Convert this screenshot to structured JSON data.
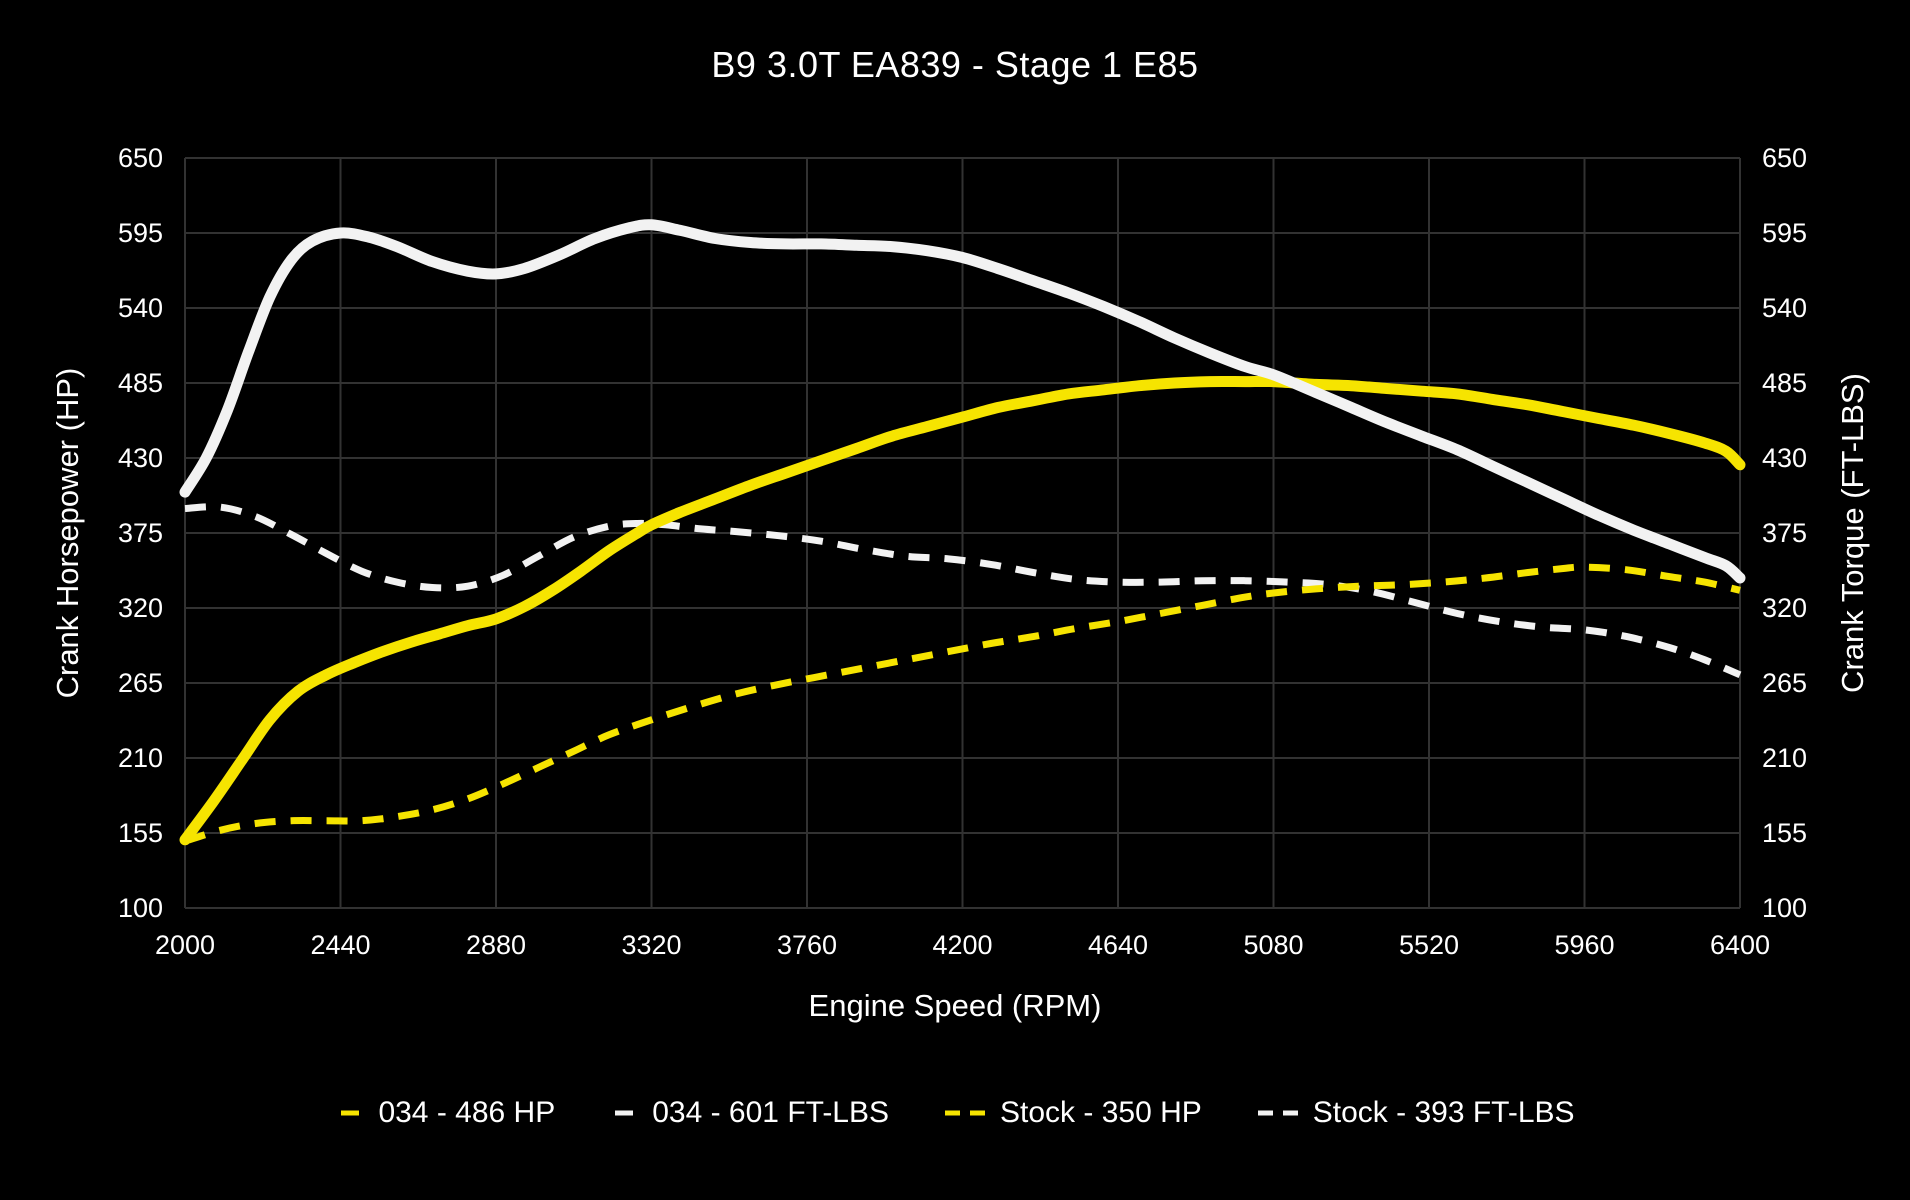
{
  "title": "B9 3.0T EA839 - Stage 1 E85",
  "colors": {
    "background": "#000000",
    "text": "#ffffff",
    "grid": "#323232",
    "yellow": "#f6e400",
    "white": "#f2f2f2"
  },
  "chart_data": {
    "type": "line",
    "title": "B9 3.0T EA839 - Stage 1 E85",
    "xlabel": "Engine Speed (RPM)",
    "ylabel_left": "Crank Horsepower (HP)",
    "ylabel_right": "Crank Torque (FT-LBS)",
    "xlim": [
      2000,
      6400
    ],
    "ylim": [
      100,
      650
    ],
    "x_ticks": [
      2000,
      2440,
      2880,
      3320,
      3760,
      4200,
      4640,
      5080,
      5520,
      5960,
      6400
    ],
    "y_ticks": [
      100,
      155,
      210,
      265,
      320,
      375,
      430,
      485,
      540,
      595,
      650
    ],
    "grid": true,
    "legend_position": "bottom",
    "series": [
      {
        "id": "tuned-hp",
        "name": "034 - 486 HP",
        "peak": 486,
        "unit": "HP",
        "color": "#f6e400",
        "style": "solid",
        "z": 2,
        "points": [
          [
            2000,
            150
          ],
          [
            2080,
            178
          ],
          [
            2160,
            208
          ],
          [
            2240,
            238
          ],
          [
            2320,
            259
          ],
          [
            2400,
            271
          ],
          [
            2480,
            280
          ],
          [
            2560,
            288
          ],
          [
            2640,
            295
          ],
          [
            2720,
            301
          ],
          [
            2800,
            307
          ],
          [
            2880,
            312
          ],
          [
            2960,
            321
          ],
          [
            3040,
            333
          ],
          [
            3120,
            347
          ],
          [
            3200,
            362
          ],
          [
            3280,
            375
          ],
          [
            3320,
            381
          ],
          [
            3400,
            390
          ],
          [
            3500,
            400
          ],
          [
            3600,
            410
          ],
          [
            3700,
            419
          ],
          [
            3800,
            428
          ],
          [
            3900,
            437
          ],
          [
            4000,
            446
          ],
          [
            4100,
            453
          ],
          [
            4200,
            460
          ],
          [
            4300,
            467
          ],
          [
            4400,
            472
          ],
          [
            4500,
            477
          ],
          [
            4600,
            480
          ],
          [
            4700,
            483
          ],
          [
            4800,
            485
          ],
          [
            4900,
            486
          ],
          [
            5000,
            486
          ],
          [
            5080,
            486
          ],
          [
            5200,
            484
          ],
          [
            5300,
            483
          ],
          [
            5400,
            481
          ],
          [
            5500,
            479
          ],
          [
            5600,
            477
          ],
          [
            5700,
            473
          ],
          [
            5800,
            469
          ],
          [
            5900,
            464
          ],
          [
            6000,
            459
          ],
          [
            6100,
            454
          ],
          [
            6200,
            448
          ],
          [
            6300,
            441
          ],
          [
            6360,
            435
          ],
          [
            6400,
            425
          ]
        ]
      },
      {
        "id": "tuned-torque",
        "name": "034 - 601 FT-LBS",
        "peak": 601,
        "unit": "FT-LBS",
        "color": "#f2f2f2",
        "style": "solid",
        "z": 3,
        "points": [
          [
            2000,
            405
          ],
          [
            2060,
            430
          ],
          [
            2120,
            465
          ],
          [
            2180,
            508
          ],
          [
            2240,
            548
          ],
          [
            2300,
            575
          ],
          [
            2360,
            589
          ],
          [
            2440,
            595
          ],
          [
            2520,
            592
          ],
          [
            2600,
            585
          ],
          [
            2700,
            574
          ],
          [
            2800,
            567
          ],
          [
            2880,
            565
          ],
          [
            2960,
            569
          ],
          [
            3060,
            579
          ],
          [
            3160,
            591
          ],
          [
            3260,
            599
          ],
          [
            3320,
            601
          ],
          [
            3400,
            597
          ],
          [
            3500,
            591
          ],
          [
            3600,
            588
          ],
          [
            3700,
            587
          ],
          [
            3800,
            587
          ],
          [
            3900,
            586
          ],
          [
            4000,
            585
          ],
          [
            4100,
            582
          ],
          [
            4200,
            577
          ],
          [
            4300,
            569
          ],
          [
            4400,
            560
          ],
          [
            4500,
            551
          ],
          [
            4600,
            541
          ],
          [
            4700,
            530
          ],
          [
            4800,
            518
          ],
          [
            4900,
            507
          ],
          [
            5000,
            497
          ],
          [
            5080,
            491
          ],
          [
            5200,
            478
          ],
          [
            5300,
            467
          ],
          [
            5400,
            456
          ],
          [
            5500,
            446
          ],
          [
            5600,
            436
          ],
          [
            5700,
            424
          ],
          [
            5800,
            412
          ],
          [
            5900,
            400
          ],
          [
            6000,
            388
          ],
          [
            6100,
            377
          ],
          [
            6200,
            367
          ],
          [
            6300,
            357
          ],
          [
            6360,
            351
          ],
          [
            6400,
            342
          ]
        ]
      },
      {
        "id": "stock-hp",
        "name": "Stock - 350 HP",
        "peak": 350,
        "unit": "HP",
        "color": "#f6e400",
        "style": "dashed",
        "z": 1,
        "points": [
          [
            2000,
            149
          ],
          [
            2100,
            157
          ],
          [
            2200,
            162
          ],
          [
            2300,
            164
          ],
          [
            2400,
            164
          ],
          [
            2500,
            164
          ],
          [
            2600,
            167
          ],
          [
            2700,
            172
          ],
          [
            2800,
            180
          ],
          [
            2900,
            191
          ],
          [
            3000,
            203
          ],
          [
            3100,
            215
          ],
          [
            3200,
            227
          ],
          [
            3320,
            238
          ],
          [
            3440,
            248
          ],
          [
            3560,
            257
          ],
          [
            3680,
            264
          ],
          [
            3800,
            270
          ],
          [
            3920,
            276
          ],
          [
            4040,
            282
          ],
          [
            4160,
            288
          ],
          [
            4280,
            294
          ],
          [
            4400,
            299
          ],
          [
            4520,
            305
          ],
          [
            4640,
            310
          ],
          [
            4760,
            316
          ],
          [
            4880,
            322
          ],
          [
            5000,
            328
          ],
          [
            5080,
            331
          ],
          [
            5200,
            334
          ],
          [
            5320,
            336
          ],
          [
            5440,
            337
          ],
          [
            5560,
            339
          ],
          [
            5680,
            342
          ],
          [
            5800,
            346
          ],
          [
            5900,
            349
          ],
          [
            5960,
            350
          ],
          [
            6080,
            348
          ],
          [
            6200,
            343
          ],
          [
            6300,
            339
          ],
          [
            6400,
            333
          ]
        ]
      },
      {
        "id": "stock-torque",
        "name": "Stock - 393 FT-LBS",
        "peak": 393,
        "unit": "FT-LBS",
        "color": "#f2f2f2",
        "style": "dashed",
        "z": 0,
        "points": [
          [
            2000,
            393
          ],
          [
            2100,
            394
          ],
          [
            2200,
            387
          ],
          [
            2300,
            374
          ],
          [
            2400,
            360
          ],
          [
            2500,
            347
          ],
          [
            2600,
            339
          ],
          [
            2700,
            335
          ],
          [
            2800,
            336
          ],
          [
            2900,
            344
          ],
          [
            3000,
            358
          ],
          [
            3100,
            372
          ],
          [
            3200,
            380
          ],
          [
            3280,
            382
          ],
          [
            3360,
            381
          ],
          [
            3460,
            378
          ],
          [
            3560,
            376
          ],
          [
            3680,
            373
          ],
          [
            3800,
            369
          ],
          [
            3920,
            363
          ],
          [
            4040,
            358
          ],
          [
            4160,
            356
          ],
          [
            4280,
            352
          ],
          [
            4400,
            346
          ],
          [
            4520,
            341
          ],
          [
            4640,
            339
          ],
          [
            4760,
            339
          ],
          [
            4880,
            340
          ],
          [
            5000,
            340
          ],
          [
            5120,
            339
          ],
          [
            5240,
            337
          ],
          [
            5360,
            332
          ],
          [
            5480,
            324
          ],
          [
            5600,
            316
          ],
          [
            5720,
            310
          ],
          [
            5840,
            306
          ],
          [
            5960,
            304
          ],
          [
            6080,
            299
          ],
          [
            6200,
            291
          ],
          [
            6300,
            282
          ],
          [
            6400,
            271
          ]
        ]
      }
    ]
  }
}
